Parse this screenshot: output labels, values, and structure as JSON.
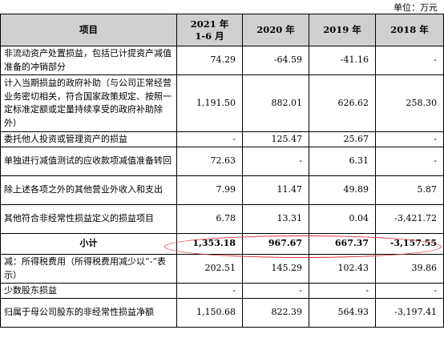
{
  "unit": "单位：万元",
  "headers": [
    "项目",
    "2021 年\n1-6 月",
    "2020 年",
    "2019 年",
    "2018 年"
  ],
  "rows": [
    {
      "label": "非流动资产处置损益，包括已计提资产减值准备的冲销部分",
      "values": [
        "74.29",
        "-64.59",
        "-41.16",
        "-"
      ]
    },
    {
      "label": "计入当期损益的政府补助（与公司正常经营业务密切相关，符合国家政策规定、按照一定标准定额或定量持续享受的政府补助除外）",
      "values": [
        "1,191.50",
        "882.01",
        "626.62",
        "258.30"
      ]
    },
    {
      "label": "委托他人投资或管理资产的损益",
      "values": [
        "-",
        "125.47",
        "25.67",
        "-"
      ]
    },
    {
      "label": "单独进行减值测试的应收款项减值准备转回",
      "values": [
        "72.63",
        "-",
        "6.31",
        "-"
      ]
    },
    {
      "label": "除上述各项之外的其他营业外收入和支出",
      "values": [
        "7.99",
        "11.47",
        "49.89",
        "5.87"
      ]
    },
    {
      "label": "其他符合非经常性损益定义的损益项目",
      "values": [
        "6.78",
        "13.31",
        "0.04",
        "-3,421.72"
      ]
    },
    {
      "label": "小计",
      "values": [
        "1,353.18",
        "967.67",
        "667.37",
        "-3,157.55"
      ],
      "subtotal": true
    },
    {
      "label": "减：所得税费用（所得税费用减少以“-”表示）",
      "values": [
        "202.51",
        "145.29",
        "102.43",
        "39.86"
      ]
    },
    {
      "label": "少数股东损益",
      "values": [
        "-",
        "-",
        "-",
        "-"
      ]
    },
    {
      "label": "归属于母公司股东的非经常性损益净额",
      "values": [
        "1,150.68",
        "822.39",
        "564.93",
        "-3,197.41"
      ]
    }
  ],
  "accent_color": "#e0303a",
  "header_bg": "#d0d0d0"
}
